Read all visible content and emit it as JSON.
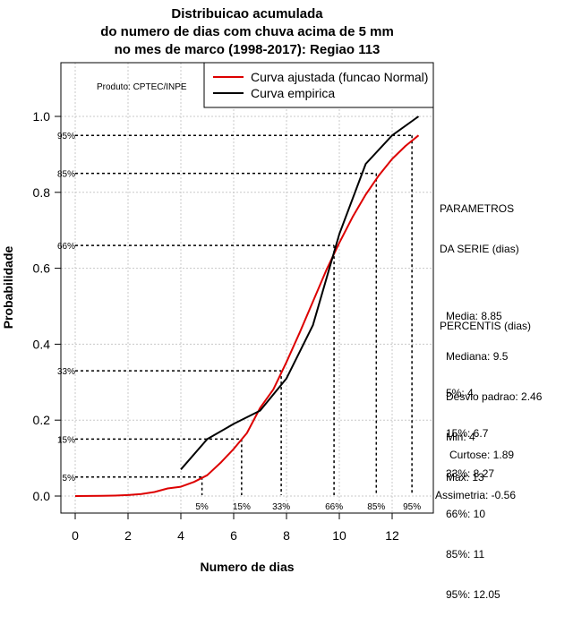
{
  "chart_data": {
    "type": "line",
    "title": [
      "Distribuicao acumulada",
      "do numero de dias com chuva acima de 5 mm",
      "no mes de marco (1998-2017): Regiao 113"
    ],
    "xlabel": "Numero de dias",
    "ylabel": "Probabilidade",
    "xlim": [
      -0.5,
      13.1
    ],
    "ylim": [
      -0.05,
      1.15
    ],
    "x_ticks": [
      0,
      2,
      4,
      6,
      8,
      10,
      12
    ],
    "y_ticks": [
      0.0,
      0.2,
      0.4,
      0.6,
      0.8,
      1.0
    ],
    "grid": true,
    "credit": "Produto: CPTEC/INPE",
    "legend_position": "top-right",
    "series": [
      {
        "name": "Curva ajustada (funcao Normal)",
        "color": "#dd0000",
        "x": [
          0,
          0.5,
          1,
          1.5,
          2,
          2.5,
          3,
          3.5,
          4,
          4.5,
          5,
          5.5,
          6,
          6.5,
          7,
          7.5,
          8,
          8.5,
          9,
          9.5,
          10,
          10.5,
          11,
          11.5,
          12,
          12.5,
          13
        ],
        "values": [
          0.0001,
          0.0002,
          0.0005,
          0.0012,
          0.0026,
          0.0054,
          0.0107,
          0.0201,
          0.0246,
          0.0373,
          0.055,
          0.0876,
          0.124,
          0.166,
          0.232,
          0.281,
          0.353,
          0.431,
          0.512,
          0.594,
          0.667,
          0.735,
          0.794,
          0.845,
          0.888,
          0.922,
          0.95
        ]
      },
      {
        "name": "Curva empirica",
        "color": "#000000",
        "x": [
          4,
          5,
          6,
          7,
          8,
          9,
          10,
          11,
          12,
          13
        ],
        "values": [
          0.07,
          0.15,
          0.19,
          0.225,
          0.31,
          0.45,
          0.69,
          0.875,
          0.95,
          1.0
        ]
      }
    ],
    "percentile_lines": [
      {
        "label": "5%",
        "p": 0.05,
        "x": 4.8
      },
      {
        "label": "15%",
        "p": 0.15,
        "x": 6.3
      },
      {
        "label": "33%",
        "p": 0.33,
        "x": 7.8
      },
      {
        "label": "66%",
        "p": 0.66,
        "x": 9.8
      },
      {
        "label": "85%",
        "p": 0.85,
        "x": 11.4
      },
      {
        "label": "95%",
        "p": 0.95,
        "x": 12.75
      }
    ]
  },
  "params": {
    "header": [
      "PARAMETROS",
      "DA SERIE (dias)"
    ],
    "lines": [
      "Media: 8.85",
      "Mediana: 9.5",
      "Desvio padrao: 2.46",
      "Min: 4",
      "Max: 13"
    ]
  },
  "percentis": {
    "header": "PERCENTIS (dias)",
    "lines": [
      "5%: 4",
      "15%: 6.7",
      "33%: 8.27",
      "66%: 10",
      "85%: 11",
      "95%: 12.05"
    ]
  },
  "stats": {
    "curtose": "Curtose: 1.89",
    "assimetria": "Assimetria: -0.56"
  }
}
